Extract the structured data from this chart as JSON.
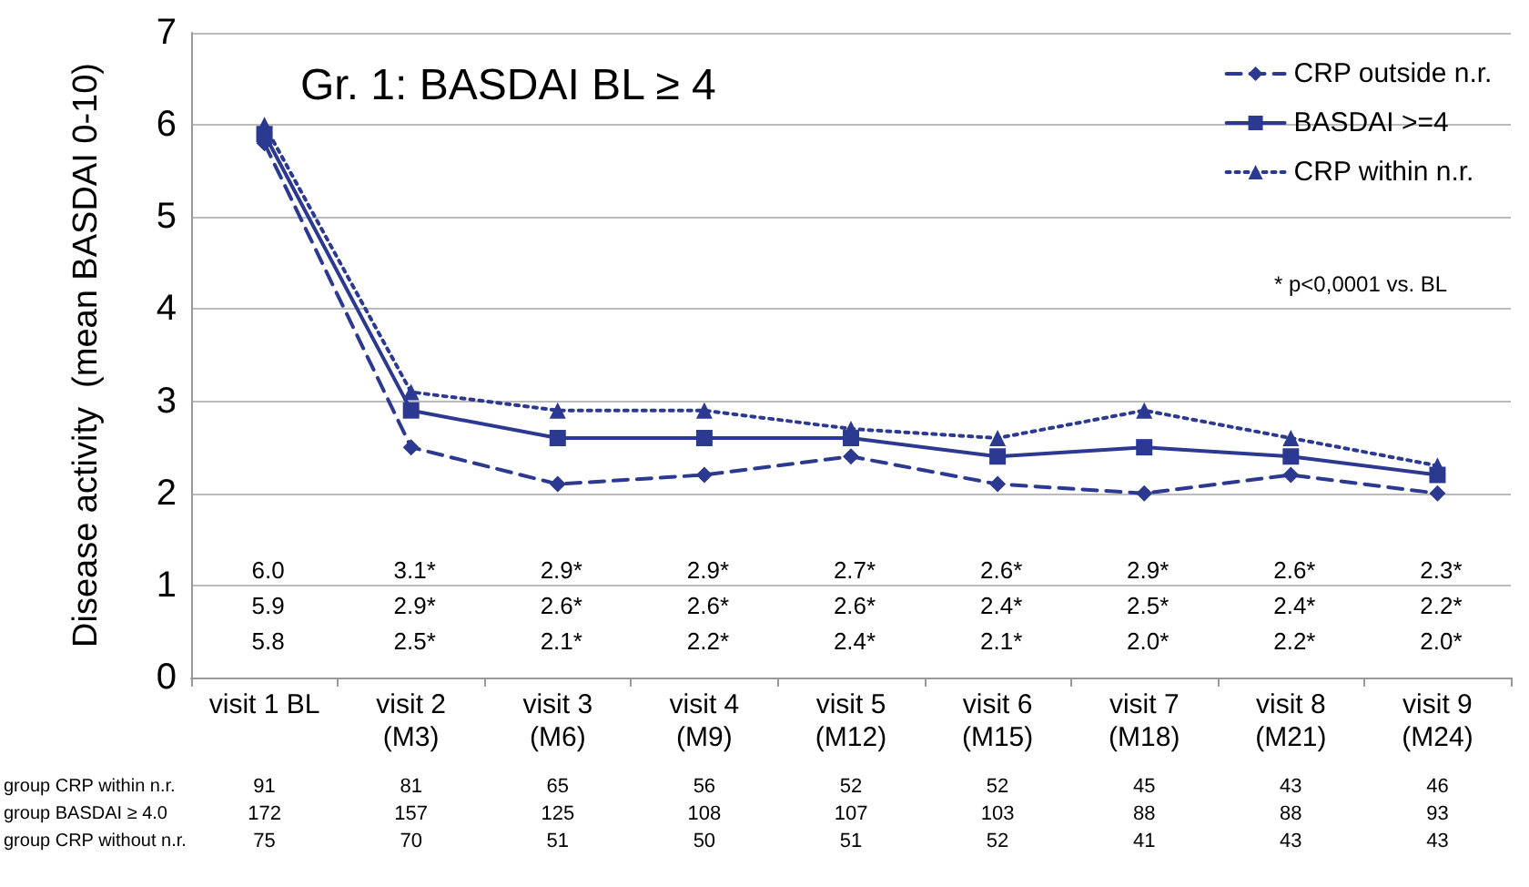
{
  "chart_data": {
    "type": "line",
    "title": "Gr. 1: BASDAI BL ≥ 4",
    "ylabel": "Disease activity  (mean BASDAI 0-10)",
    "categories": [
      "visit 1 BL",
      "visit 2\n(M3)",
      "visit 3\n(M6)",
      "visit 4\n(M9)",
      "visit 5\n(M12)",
      "visit 6\n(M15)",
      "visit 7\n(M18)",
      "visit 8\n(M21)",
      "visit 9\n(M24)"
    ],
    "series": [
      {
        "name": "CRP outside n.r.",
        "color": "#2b3990",
        "marker": "diamond",
        "line_style": "dashed",
        "values": [
          5.8,
          2.5,
          2.1,
          2.2,
          2.4,
          2.1,
          2.0,
          2.2,
          2.0
        ]
      },
      {
        "name": "BASDAI >=4",
        "color": "#2b3990",
        "marker": "square",
        "line_style": "solid",
        "values": [
          5.9,
          2.9,
          2.6,
          2.6,
          2.6,
          2.4,
          2.5,
          2.4,
          2.2
        ]
      },
      {
        "name": "CRP within n.r.",
        "color": "#2b3990",
        "marker": "triangle",
        "line_style": "dotted",
        "values": [
          6.0,
          3.1,
          2.9,
          2.9,
          2.7,
          2.6,
          2.9,
          2.6,
          2.3
        ]
      }
    ],
    "ylim": [
      0,
      7
    ],
    "yticks": [
      0,
      1,
      2,
      3,
      4,
      5,
      6,
      7
    ],
    "grid": "y",
    "legend": "top right",
    "annotations": [
      "6.0",
      "3.1*",
      "2.9*",
      "2.9*",
      "2.7*",
      "2.6*",
      "2.9*",
      "2.6*",
      "2.3*",
      "5.9",
      "2.9*",
      "2.6*",
      "2.6*",
      "2.6*",
      "2.4*",
      "2.5*",
      "2.4*",
      "2.2*",
      "5.8",
      "2.5*",
      "2.1*",
      "2.2*",
      "2.4*",
      "2.1*",
      "2.0*",
      "2.2*",
      "2.0*",
      "* p<0,0001 vs. BL",
      "group CRP within n.r.",
      "91",
      "81",
      "65",
      "56",
      "52",
      "52",
      "45",
      "43",
      "46",
      "group BASDAI ≥ 4.0",
      "172",
      "157",
      "125",
      "108",
      "107",
      "103",
      "88",
      "88",
      "93",
      "group CRP without n.r.",
      "75",
      "70",
      "51",
      "50",
      "51",
      "52",
      "41",
      "43",
      "43"
    ]
  }
}
